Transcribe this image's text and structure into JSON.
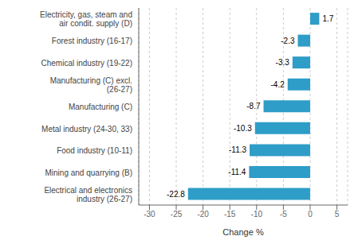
{
  "chart_data": {
    "type": "bar",
    "orientation": "horizontal",
    "categories": [
      "Electrical and electronics industry (26-27)",
      "Mining and quarrying (B)",
      "Food industry (10-11)",
      "Metal industry (24-30, 33)",
      "Manufacturing (C)",
      "Manufacturing (C) excl. (26-27)",
      "Chemical industry (19-22)",
      "Forest industry (16-17)",
      "Electricity, gas, steam and air condit. supply (D)"
    ],
    "values": [
      -22.8,
      -11.4,
      -11.3,
      -10.3,
      -8.7,
      -4.2,
      -3.3,
      -2.3,
      1.7
    ],
    "color": "#2E9DC8",
    "xlabel": "Change %",
    "xlim": [
      -32,
      7
    ],
    "xticks": [
      -30,
      -25,
      -20,
      -15,
      -10,
      -5,
      0,
      5
    ],
    "grid": true,
    "data_labels": true
  }
}
